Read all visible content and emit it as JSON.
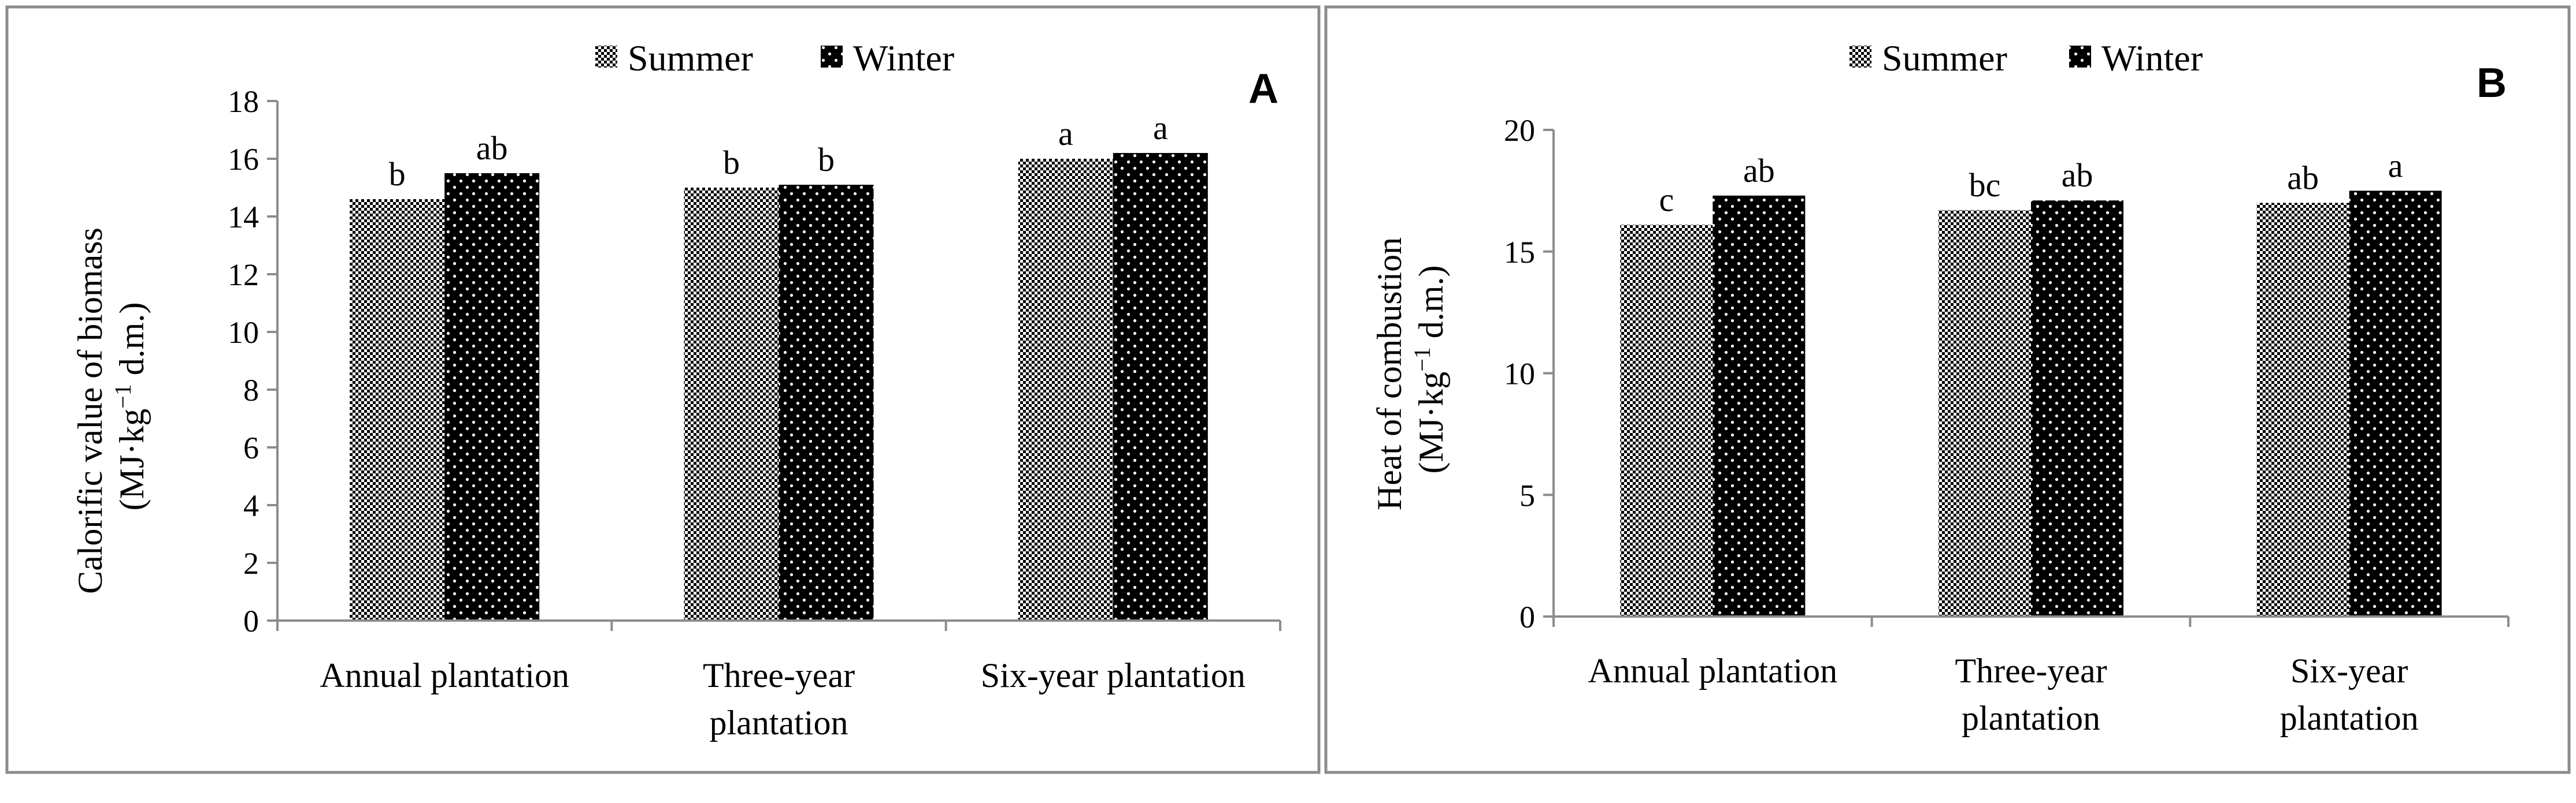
{
  "chart_data": [
    {
      "type": "bar",
      "panel_label": "A",
      "ylabel_line1": "Calorific value of biomass",
      "ylabel_line2_pre": "(MJ·kg",
      "ylabel_line2_sup": "−1",
      "ylabel_line2_post": " d.m.)",
      "ylim": [
        0,
        18
      ],
      "yticks": [
        "0",
        "2",
        "4",
        "6",
        "8",
        "10",
        "12",
        "14",
        "16",
        "18"
      ],
      "categories": [
        [
          "Annual plantation"
        ],
        [
          "Three-year",
          "plantation"
        ],
        [
          "Six-year plantation"
        ]
      ],
      "series": [
        {
          "name": "Summer",
          "pattern": "checker",
          "values": [
            14.6,
            15.0,
            16.0
          ],
          "letters": [
            "b",
            "b",
            "a"
          ]
        },
        {
          "name": "Winter",
          "pattern": "dots",
          "values": [
            15.5,
            15.1,
            16.2
          ],
          "letters": [
            "ab",
            "b",
            "a"
          ]
        }
      ],
      "legend": [
        "Summer",
        "Winter"
      ],
      "legend_position": "top-center"
    },
    {
      "type": "bar",
      "panel_label": "B",
      "ylabel_line1": "Heat of combustion",
      "ylabel_line2_pre": "(MJ·kg",
      "ylabel_line2_sup": "−1",
      "ylabel_line2_post": " d.m.)",
      "ylim": [
        0,
        20
      ],
      "yticks": [
        "0",
        "5",
        "10",
        "15",
        "20"
      ],
      "categories": [
        [
          "Annual plantation"
        ],
        [
          "Three-year",
          "plantation"
        ],
        [
          "Six-year",
          "plantation"
        ]
      ],
      "series": [
        {
          "name": "Summer",
          "pattern": "checker",
          "values": [
            16.1,
            16.7,
            17.0
          ],
          "letters": [
            "c",
            "bc",
            "ab"
          ]
        },
        {
          "name": "Winter",
          "pattern": "dots",
          "values": [
            17.3,
            17.1,
            17.5
          ],
          "letters": [
            "ab",
            "ab",
            "a"
          ]
        }
      ],
      "legend": [
        "Summer",
        "Winter"
      ],
      "legend_position": "top-center"
    }
  ]
}
